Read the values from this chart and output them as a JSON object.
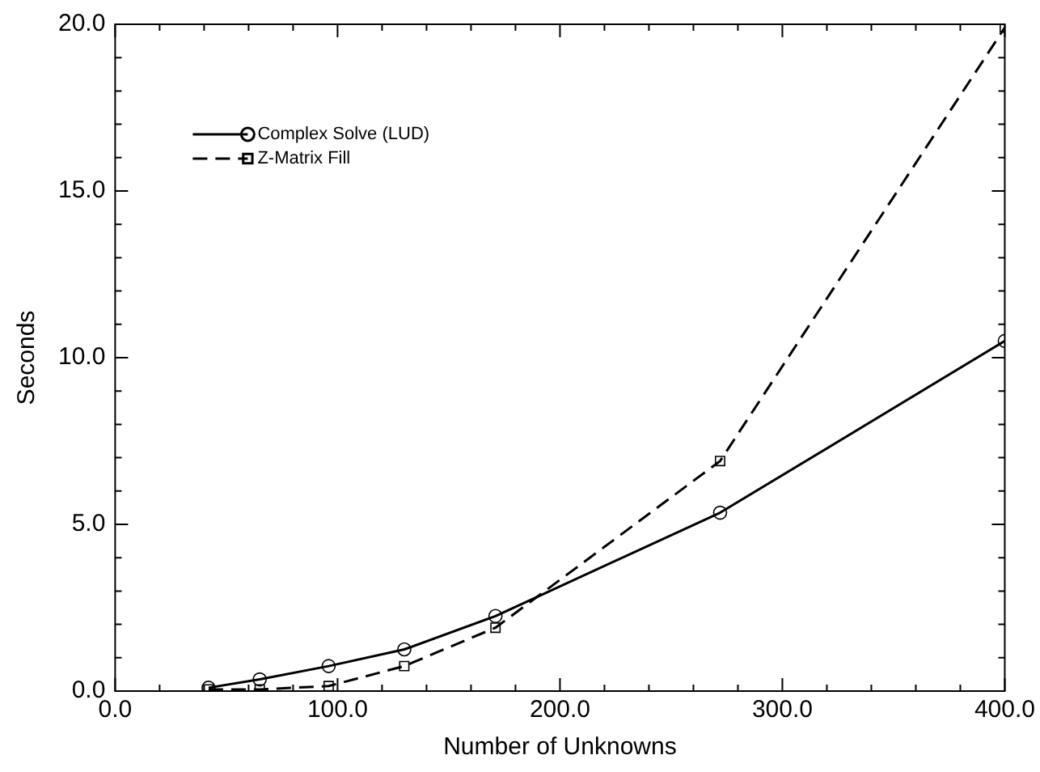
{
  "chart_data": {
    "type": "line",
    "xlabel": "Number of Unknowns",
    "ylabel": "Seconds",
    "xlim": [
      0,
      400
    ],
    "ylim": [
      0,
      20
    ],
    "xticks": [
      {
        "value": 0,
        "label": "0.0"
      },
      {
        "value": 100,
        "label": "100.0"
      },
      {
        "value": 200,
        "label": "200.0"
      },
      {
        "value": 300,
        "label": "300.0"
      },
      {
        "value": 400,
        "label": "400.0"
      }
    ],
    "yticks": [
      {
        "value": 0,
        "label": "0.0"
      },
      {
        "value": 5,
        "label": "5.0"
      },
      {
        "value": 10,
        "label": "10.0"
      },
      {
        "value": 15,
        "label": "15.0"
      },
      {
        "value": 20,
        "label": "20.0"
      }
    ],
    "grid": false,
    "legend": "top left",
    "series": [
      {
        "name": "Complex Solve (LUD)",
        "color": "#000000",
        "marker": "circle",
        "line_style": "solid",
        "x": [
          42,
          65,
          96,
          130,
          171,
          272,
          400
        ],
        "values": [
          0.1,
          0.35,
          0.75,
          1.25,
          2.25,
          5.35,
          10.5
        ]
      },
      {
        "name": "Z-Matrix Fill",
        "color": "#000000",
        "marker": "square",
        "line_style": "dashed",
        "x": [
          42,
          65,
          96,
          130,
          171,
          272,
          400
        ],
        "values": [
          0.05,
          0.05,
          0.15,
          0.75,
          1.9,
          6.9,
          19.9
        ]
      }
    ]
  }
}
